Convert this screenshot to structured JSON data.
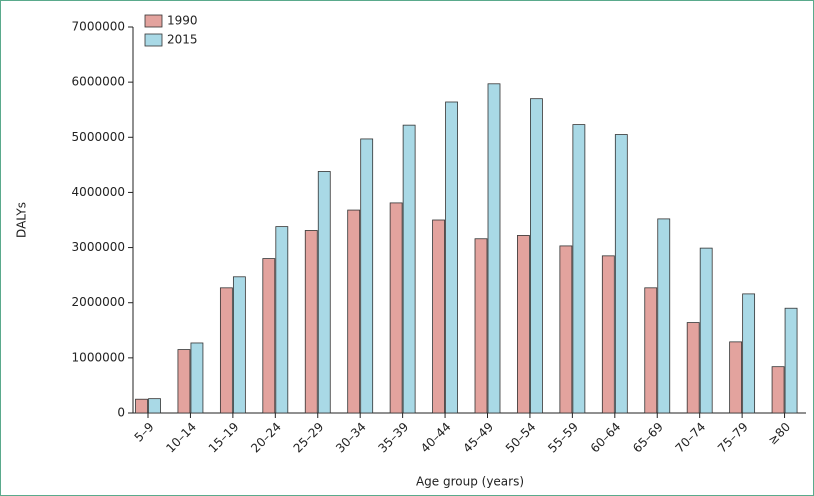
{
  "chart_data": {
    "type": "bar",
    "xlabel": "Age group (years)",
    "ylabel": "DALYs",
    "categories": [
      "5–9",
      "10–14",
      "15–19",
      "20–24",
      "25–29",
      "30–34",
      "35–39",
      "40–44",
      "45–49",
      "50–54",
      "55–59",
      "60–64",
      "65–69",
      "70–74",
      "75–79",
      "≥80"
    ],
    "series": [
      {
        "name": "1990",
        "color": "#e3a39e",
        "values": [
          250000,
          1150000,
          2270000,
          2800000,
          3310000,
          3680000,
          3810000,
          3500000,
          3160000,
          3220000,
          3030000,
          2850000,
          2270000,
          1640000,
          1290000,
          840000
        ]
      },
      {
        "name": "2015",
        "color": "#a9d9e6",
        "values": [
          260000,
          1270000,
          2470000,
          3380000,
          4380000,
          4970000,
          5220000,
          5640000,
          5970000,
          5700000,
          5230000,
          5050000,
          3520000,
          2990000,
          2160000,
          1900000
        ]
      }
    ],
    "ylim": [
      0,
      7000000
    ],
    "yticks": [
      0,
      1000000,
      2000000,
      3000000,
      4000000,
      5000000,
      6000000,
      7000000
    ],
    "legend": "upper left"
  }
}
